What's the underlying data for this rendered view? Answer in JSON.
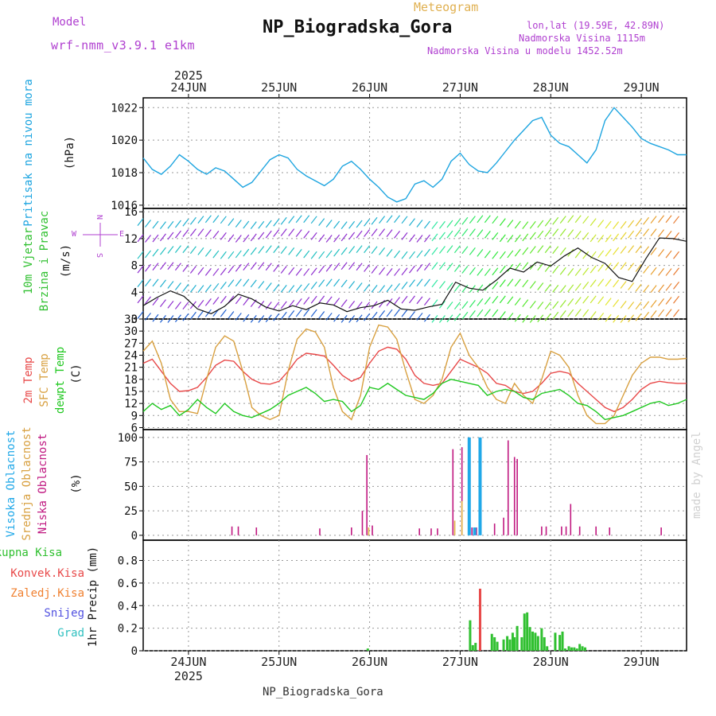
{
  "header": {
    "model_label": "Model",
    "model_name": "wrf-nmm_v3.9.1 e1km",
    "product": "Meteogram",
    "station": "NP_Biogradska_Gora",
    "lonlat": "lon,lat (19.59E, 42.89N)",
    "altitude": "Nadmorska Visina 1115m",
    "model_altitude": "Nadmorska Visina u modelu 1452.52m",
    "footer_station": "NP_Biogradska_Gora",
    "credit": "made by Angel"
  },
  "colors": {
    "pressure": "#1ea5e0",
    "t2m": "#e84848",
    "tsfc": "#d8a040",
    "dewpoint": "#20c820",
    "high_cloud": "#20a8e8",
    "mid_cloud": "#e0b040",
    "low_cloud": "#c01880",
    "total_precip": "#30c030",
    "convective": "#e84848",
    "freezing": "#f08030",
    "snow": "#5050e0",
    "hail": "#30c0c0",
    "grid": "#999999"
  },
  "time_axis": {
    "year": "2025",
    "days": [
      "24JUN",
      "25JUN",
      "26JUN",
      "27JUN",
      "28JUN",
      "29JUN"
    ],
    "day_index": [
      0.5,
      1.5,
      2.5,
      3.5,
      4.5,
      5.5
    ],
    "start_day": 0,
    "end_day": 6
  },
  "chart_data": [
    {
      "type": "line",
      "panel": "pressure",
      "ylabel_side": "Pritisak na nivou mora",
      "unit": "(hPa)",
      "ylim": [
        1015.8,
        1022.6
      ],
      "yticks": [
        1016,
        1018,
        1020,
        1022
      ],
      "series": [
        {
          "color_key": "pressure",
          "x": [
            0.0,
            0.1,
            0.2,
            0.3,
            0.4,
            0.5,
            0.6,
            0.7,
            0.8,
            0.9,
            1.0,
            1.1,
            1.2,
            1.3,
            1.4,
            1.5,
            1.6,
            1.7,
            1.8,
            1.9,
            2.0,
            2.1,
            2.2,
            2.3,
            2.4,
            2.5,
            2.6,
            2.7,
            2.8,
            2.9,
            3.0,
            3.1,
            3.2,
            3.3,
            3.4,
            3.5,
            3.6,
            3.7,
            3.8,
            3.9,
            4.0,
            4.1,
            4.2,
            4.3,
            4.4,
            4.5,
            4.6,
            4.7,
            4.8,
            4.9,
            5.0,
            5.1,
            5.2,
            5.3,
            5.4,
            5.5,
            5.6,
            5.7,
            5.8,
            5.9,
            6.0
          ],
          "y": [
            1018.9,
            1018.2,
            1017.9,
            1018.4,
            1019.1,
            1018.7,
            1018.2,
            1017.9,
            1018.3,
            1018.1,
            1017.6,
            1017.1,
            1017.4,
            1018.1,
            1018.8,
            1019.1,
            1018.9,
            1018.2,
            1017.8,
            1017.5,
            1017.2,
            1017.6,
            1018.4,
            1018.7,
            1018.2,
            1017.6,
            1017.1,
            1016.5,
            1016.2,
            1016.4,
            1017.3,
            1017.5,
            1017.1,
            1017.6,
            1018.7,
            1019.2,
            1018.5,
            1018.1,
            1018.0,
            1018.6,
            1019.3,
            1020.0,
            1020.6,
            1021.2,
            1021.4,
            1020.3,
            1019.8,
            1019.6,
            1019.1,
            1018.6,
            1019.4,
            1021.2,
            1022.0,
            1021.4,
            1020.8,
            1020.1,
            1019.8,
            1019.6,
            1019.4,
            1019.1,
            1019.1
          ]
        }
      ]
    },
    {
      "type": "line",
      "panel": "wind",
      "ylabel_side": [
        "10m Vjetar",
        "Brzina i Pravac"
      ],
      "unit": "(m/s)",
      "compass_note": "N up, W left, E right, S down",
      "ylim": [
        0,
        16.5
      ],
      "yticks": [
        0,
        4,
        8,
        12,
        16
      ],
      "series": [
        {
          "color_key": "wind_speed",
          "x": [
            0.0,
            0.15,
            0.3,
            0.45,
            0.6,
            0.75,
            0.9,
            1.05,
            1.2,
            1.35,
            1.5,
            1.65,
            1.8,
            1.95,
            2.1,
            2.25,
            2.4,
            2.55,
            2.7,
            2.85,
            3.0,
            3.15,
            3.3,
            3.45,
            3.6,
            3.75,
            3.9,
            4.05,
            4.2,
            4.35,
            4.5,
            4.65,
            4.8,
            4.95,
            5.1,
            5.25,
            5.4,
            5.55,
            5.7,
            5.85,
            6.0
          ],
          "y": [
            2.0,
            3.2,
            4.2,
            3.4,
            1.5,
            0.8,
            1.9,
            3.7,
            3.0,
            1.8,
            1.2,
            2.0,
            1.4,
            2.4,
            2.1,
            1.1,
            1.7,
            2.0,
            2.8,
            1.5,
            1.3,
            1.8,
            2.2,
            5.5,
            4.6,
            4.3,
            5.8,
            7.6,
            7.0,
            8.5,
            7.9,
            9.4,
            10.6,
            9.2,
            8.3,
            6.2,
            5.6,
            9.0,
            12.1,
            12.0,
            11.6
          ]
        }
      ]
    },
    {
      "type": "line",
      "panel": "temperature",
      "ylabel_side": [
        "2m Temp",
        "SFC Temp",
        "dewpt Temp"
      ],
      "unit": "(C)",
      "ylim": [
        5.5,
        33
      ],
      "yticks": [
        6,
        9,
        12,
        15,
        18,
        21,
        24,
        27,
        30,
        33
      ],
      "series": [
        {
          "name": "2m Temp",
          "color_key": "t2m",
          "x": [
            0.0,
            0.1,
            0.2,
            0.3,
            0.4,
            0.5,
            0.6,
            0.7,
            0.8,
            0.9,
            1.0,
            1.1,
            1.2,
            1.3,
            1.4,
            1.5,
            1.6,
            1.7,
            1.8,
            1.9,
            2.0,
            2.1,
            2.2,
            2.3,
            2.4,
            2.5,
            2.6,
            2.7,
            2.8,
            2.9,
            3.0,
            3.1,
            3.2,
            3.3,
            3.4,
            3.5,
            3.6,
            3.7,
            3.8,
            3.9,
            4.0,
            4.1,
            4.2,
            4.3,
            4.4,
            4.5,
            4.6,
            4.7,
            4.8,
            4.9,
            5.0,
            5.1,
            5.2,
            5.3,
            5.4,
            5.5,
            5.6,
            5.7,
            5.8,
            5.9,
            6.0
          ],
          "y": [
            22.0,
            23.0,
            20.0,
            17.0,
            15.0,
            15.2,
            16.0,
            18.5,
            21.5,
            22.8,
            22.5,
            20.0,
            18.0,
            17.0,
            16.8,
            17.5,
            20.0,
            23.0,
            24.5,
            24.2,
            23.8,
            21.5,
            19.0,
            17.5,
            18.5,
            22.0,
            25.0,
            26.0,
            25.5,
            23.0,
            19.0,
            17.0,
            16.5,
            17.0,
            20.0,
            23.0,
            22.0,
            21.0,
            19.5,
            17.0,
            16.5,
            15.0,
            14.5,
            15.0,
            17.0,
            19.5,
            20.0,
            19.5,
            17.0,
            15.0,
            13.0,
            11.0,
            10.0,
            11.0,
            13.0,
            15.5,
            17.0,
            17.5,
            17.2,
            17.0,
            17.0
          ]
        },
        {
          "name": "SFC Temp",
          "color_key": "tsfc",
          "x": [
            0.0,
            0.1,
            0.2,
            0.3,
            0.4,
            0.5,
            0.6,
            0.7,
            0.8,
            0.9,
            1.0,
            1.1,
            1.2,
            1.3,
            1.4,
            1.5,
            1.6,
            1.7,
            1.8,
            1.9,
            2.0,
            2.1,
            2.2,
            2.3,
            2.4,
            2.5,
            2.6,
            2.7,
            2.8,
            2.9,
            3.0,
            3.1,
            3.2,
            3.3,
            3.4,
            3.5,
            3.6,
            3.7,
            3.8,
            3.9,
            4.0,
            4.1,
            4.2,
            4.3,
            4.4,
            4.5,
            4.6,
            4.7,
            4.8,
            4.9,
            5.0,
            5.1,
            5.2,
            5.3,
            5.4,
            5.5,
            5.6,
            5.7,
            5.8,
            5.9,
            6.0
          ],
          "y": [
            25.0,
            27.5,
            22.0,
            13.0,
            10.0,
            10.0,
            9.5,
            18.0,
            26.0,
            28.8,
            27.5,
            20.0,
            11.0,
            9.0,
            8.0,
            9.0,
            20.0,
            28.0,
            30.5,
            29.8,
            26.0,
            16.0,
            10.0,
            8.0,
            14.0,
            26.0,
            31.5,
            31.0,
            28.0,
            20.0,
            13.0,
            12.0,
            14.0,
            18.0,
            26.0,
            29.5,
            24.0,
            21.0,
            16.0,
            13.0,
            12.0,
            17.0,
            14.0,
            12.0,
            18.0,
            25.0,
            24.0,
            21.0,
            14.0,
            9.0,
            7.0,
            7.0,
            9.0,
            14.0,
            19.0,
            22.0,
            23.5,
            23.5,
            23.0,
            23.0,
            23.2
          ]
        },
        {
          "name": "dewpt Temp",
          "color_key": "dewpoint",
          "x": [
            0.0,
            0.1,
            0.2,
            0.3,
            0.4,
            0.5,
            0.6,
            0.7,
            0.8,
            0.9,
            1.0,
            1.1,
            1.2,
            1.3,
            1.4,
            1.5,
            1.6,
            1.7,
            1.8,
            1.9,
            2.0,
            2.1,
            2.2,
            2.3,
            2.4,
            2.5,
            2.6,
            2.7,
            2.8,
            2.9,
            3.0,
            3.1,
            3.2,
            3.3,
            3.4,
            3.5,
            3.6,
            3.7,
            3.8,
            3.9,
            4.0,
            4.1,
            4.2,
            4.3,
            4.4,
            4.5,
            4.6,
            4.7,
            4.8,
            4.9,
            5.0,
            5.1,
            5.2,
            5.3,
            5.4,
            5.5,
            5.6,
            5.7,
            5.8,
            5.9,
            6.0
          ],
          "y": [
            10.0,
            12.0,
            10.5,
            11.5,
            9.0,
            10.5,
            13.0,
            11.0,
            9.5,
            12.0,
            10.0,
            9.0,
            8.5,
            9.5,
            10.5,
            12.0,
            14.0,
            15.0,
            16.0,
            14.5,
            12.5,
            13.0,
            12.5,
            10.0,
            11.5,
            16.0,
            15.5,
            17.0,
            15.5,
            14.0,
            13.5,
            13.0,
            14.5,
            17.0,
            18.0,
            17.5,
            17.0,
            16.5,
            14.0,
            15.0,
            15.5,
            15.0,
            13.5,
            13.0,
            14.5,
            15.0,
            15.5,
            14.0,
            12.0,
            11.5,
            10.0,
            8.0,
            8.5,
            9.0,
            10.0,
            11.0,
            12.0,
            12.5,
            11.5,
            12.0,
            13.0
          ]
        }
      ]
    },
    {
      "type": "bar",
      "panel": "clouds",
      "ylabel_side": [
        "Visoka Oblacnost",
        "Srednja Oblacnost",
        "Niska Oblacnost"
      ],
      "unit": "(%)",
      "ylim": [
        -5,
        108
      ],
      "yticks": [
        0,
        25,
        50,
        75,
        100
      ],
      "series": [
        {
          "name": "Niska Oblacnost",
          "color_key": "low_cloud",
          "x": [
            0.98,
            1.05,
            1.25,
            1.95,
            2.3,
            2.42,
            2.47,
            2.53,
            3.05,
            3.18,
            3.25,
            3.42,
            3.52,
            3.63,
            3.68,
            3.88,
            3.98,
            4.03,
            4.1,
            4.13,
            4.4,
            4.45,
            4.62,
            4.67,
            4.72,
            4.82,
            5.0,
            5.15,
            5.72
          ],
          "y": [
            9,
            9,
            8,
            7,
            8,
            25,
            82,
            10,
            7,
            7,
            7,
            88,
            90,
            8,
            8,
            12,
            18,
            97,
            80,
            78,
            9,
            9,
            9,
            9,
            32,
            9,
            9,
            8,
            8
          ]
        },
        {
          "name": "Srednja Oblacnost",
          "color_key": "mid_cloud",
          "x": [
            2.49,
            3.44,
            3.52
          ],
          "y": [
            8,
            15,
            35
          ]
        },
        {
          "name": "Visoka Oblacnost",
          "color_key": "high_cloud",
          "x": [
            3.6,
            3.66,
            3.72
          ],
          "y": [
            100,
            8,
            100
          ]
        }
      ]
    },
    {
      "type": "bar",
      "panel": "precipitation",
      "ylabel_side": [
        "Ukupna Kisa",
        "Konvek.Kisa",
        "Zaledj.Kisa",
        "Snijeg",
        "Grad"
      ],
      "unit": "1hr Precip (mm)",
      "ylim": [
        0,
        0.98
      ],
      "yticks": [
        0,
        0.2,
        0.4,
        0.6,
        0.8
      ],
      "series": [
        {
          "name": "Ukupna Kisa",
          "color_key": "total_precip",
          "x": [
            2.48,
            3.61,
            3.64,
            3.67,
            3.85,
            3.88,
            3.91,
            3.98,
            4.02,
            4.05,
            4.08,
            4.1,
            4.13,
            4.18,
            4.21,
            4.24,
            4.27,
            4.3,
            4.33,
            4.36,
            4.4,
            4.43,
            4.46,
            4.55,
            4.6,
            4.63,
            4.66,
            4.7,
            4.73,
            4.76,
            4.79,
            4.82,
            4.85,
            4.88
          ],
          "y": [
            0.02,
            0.27,
            0.05,
            0.07,
            0.15,
            0.12,
            0.08,
            0.1,
            0.13,
            0.1,
            0.16,
            0.12,
            0.22,
            0.12,
            0.33,
            0.34,
            0.21,
            0.17,
            0.16,
            0.13,
            0.2,
            0.12,
            0.04,
            0.16,
            0.14,
            0.17,
            0.02,
            0.04,
            0.03,
            0.03,
            0.02,
            0.06,
            0.04,
            0.03
          ]
        },
        {
          "name": "Konvek.Kisa",
          "color_key": "convective",
          "x": [
            3.72
          ],
          "y": [
            0.55
          ]
        }
      ]
    }
  ]
}
